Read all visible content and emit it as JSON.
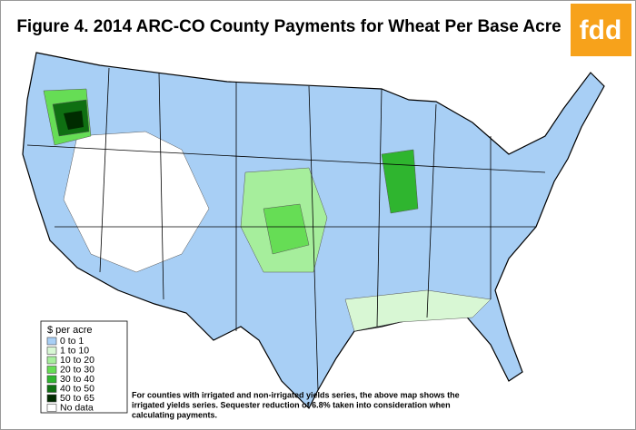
{
  "title": "Figure 4. 2014 ARC-CO County Payments for Wheat Per Base Acre",
  "logo": "fdd",
  "legend": {
    "title": "$ per acre",
    "items": [
      {
        "label": "0 to 1",
        "color": "#a8cff5"
      },
      {
        "label": "1 to 10",
        "color": "#d8f7d4"
      },
      {
        "label": "10 to 20",
        "color": "#a6ee9c"
      },
      {
        "label": "20 to 30",
        "color": "#66dd55"
      },
      {
        "label": "30 to 40",
        "color": "#2fb52f"
      },
      {
        "label": "40 to 50",
        "color": "#0f6f12"
      },
      {
        "label": "50 to 65",
        "color": "#002b00"
      },
      {
        "label": "No data",
        "color": "#ffffff"
      }
    ]
  },
  "note": [
    "For counties with irrigated and non-irrigated yields series, the above map shows the",
    "irrigated yields series.  Sequester reduction of 6.8% taken into consideration when",
    "calculating payments."
  ]
}
